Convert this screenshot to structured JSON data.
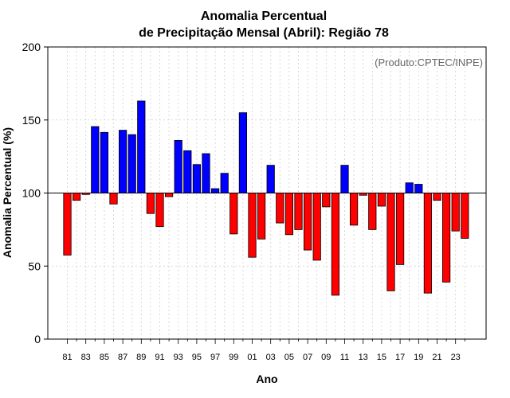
{
  "chart_data": {
    "type": "bar",
    "title_line1": "Anomalia Percentual",
    "title_line2": "de Precipitação Mensal (Abril): Região 78",
    "xlabel": "Ano",
    "ylabel": "Anomalia Percentual (%)",
    "credit": "(Produto:CPTEC/INPE)",
    "ylim": [
      0,
      200
    ],
    "yticks": [
      0,
      50,
      100,
      150,
      200
    ],
    "reference_value": 100,
    "grid": true,
    "categories": [
      "81",
      "82",
      "83",
      "84",
      "85",
      "86",
      "87",
      "88",
      "89",
      "90",
      "91",
      "92",
      "93",
      "94",
      "95",
      "96",
      "97",
      "98",
      "99",
      "00",
      "01",
      "02",
      "03",
      "04",
      "05",
      "06",
      "07",
      "08",
      "09",
      "10",
      "11",
      "12",
      "13",
      "14",
      "15",
      "16",
      "17",
      "18",
      "19",
      "20",
      "21",
      "22",
      "23",
      "24"
    ],
    "xtick_labels": [
      "81",
      "83",
      "85",
      "87",
      "89",
      "91",
      "93",
      "95",
      "97",
      "99",
      "01",
      "03",
      "05",
      "07",
      "09",
      "11",
      "13",
      "15",
      "17",
      "19",
      "21",
      "23"
    ],
    "values": [
      57.5,
      95,
      99,
      145.5,
      141.5,
      92.5,
      143,
      140,
      163,
      86,
      77,
      97.5,
      136,
      129,
      119.5,
      127,
      103,
      113.5,
      72,
      155,
      56,
      68.5,
      119,
      79.5,
      71.5,
      75,
      61,
      54,
      90.5,
      30,
      119,
      78,
      98.5,
      75,
      91,
      33,
      51,
      107,
      106,
      31.5,
      95,
      39,
      74,
      69
    ],
    "colors": {
      "above": "#0000ff",
      "below": "#ff0000",
      "outline": "#000000",
      "reference_line": "#000000"
    }
  }
}
